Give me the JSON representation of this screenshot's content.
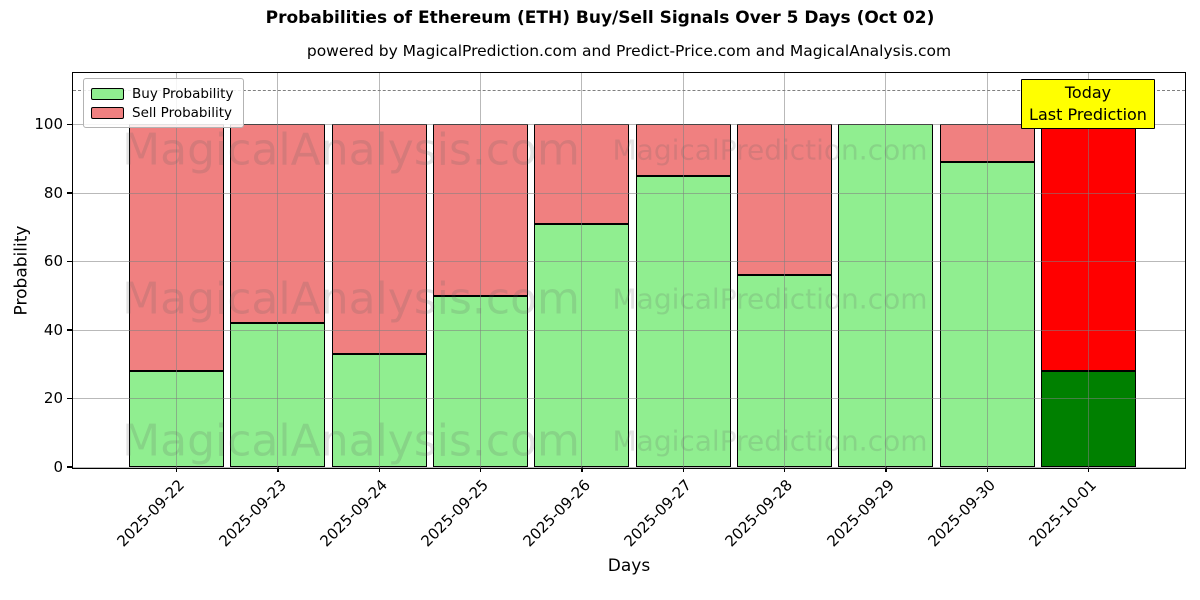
{
  "header": {
    "title": "Probabilities of Ethereum (ETH) Buy/Sell Signals Over 5 Days (Oct 02)",
    "subtitle": "powered by MagicalPrediction.com and Predict-Price.com and MagicalAnalysis.com"
  },
  "legend": {
    "items": [
      {
        "label": "Buy Probability",
        "color": "#90ee90"
      },
      {
        "label": "Sell Probability",
        "color": "#f08080"
      }
    ]
  },
  "annotation": {
    "line1": "Today",
    "line2": "Last Prediction",
    "bg_color": "#ffff00"
  },
  "watermarks": {
    "left_text": "MagicalAnalysis.com",
    "right_text": "MagicalPrediction.com"
  },
  "axes": {
    "xlabel": "Days",
    "ylabel": "Probability",
    "yticks": [
      0,
      20,
      40,
      60,
      80,
      100
    ],
    "ymax": 115,
    "dashed_line_y": 110
  },
  "colors": {
    "buy": "#90ee90",
    "sell": "#f08080",
    "today_buy": "#008000",
    "today_sell": "#ff0000",
    "edge": "#000000",
    "grid": "#808080",
    "dashed_line": "#7f7f7f",
    "annotation_bg": "#ffff00"
  },
  "chart_data": {
    "type": "bar",
    "stacked": true,
    "title": "Probabilities of Ethereum (ETH) Buy/Sell Signals Over 5 Days (Oct 02)",
    "xlabel": "Days",
    "ylabel": "Probability",
    "ylim": [
      0,
      115
    ],
    "grid": true,
    "legend_position": "upper left",
    "categories": [
      "2025-09-22",
      "2025-09-23",
      "2025-09-24",
      "2025-09-25",
      "2025-09-26",
      "2025-09-27",
      "2025-09-28",
      "2025-09-29",
      "2025-09-30",
      "2025-10-01"
    ],
    "series": [
      {
        "name": "Buy Probability",
        "color": "#90ee90",
        "values": [
          28,
          42,
          33,
          50,
          71,
          85,
          56,
          100,
          89,
          28
        ]
      },
      {
        "name": "Sell Probability",
        "color": "#f08080",
        "values": [
          72,
          58,
          67,
          50,
          29,
          15,
          44,
          0,
          11,
          72
        ]
      }
    ],
    "today": {
      "index": 9,
      "date": "2025-10-01",
      "buy": 28,
      "sell": 72,
      "buy_color": "#008000",
      "sell_color": "#ff0000"
    },
    "dashed_reference_line": 110
  }
}
